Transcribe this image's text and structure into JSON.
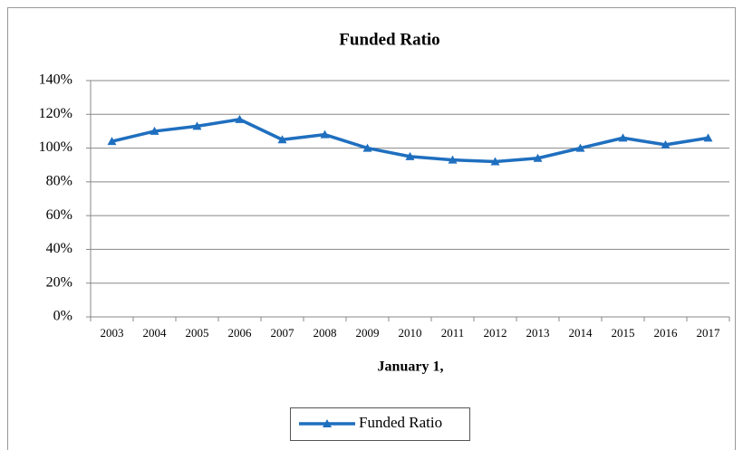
{
  "chart_data": {
    "type": "line",
    "title": "Funded  Ratio",
    "x_label": "January 1,",
    "categories": [
      "2003",
      "2004",
      "2005",
      "2006",
      "2007",
      "2008",
      "2009",
      "2010",
      "2011",
      "2012",
      "2013",
      "2014",
      "2015",
      "2016",
      "2017"
    ],
    "series": [
      {
        "name": "Funded Ratio",
        "color": "#1f6fbf",
        "values": [
          104,
          110,
          113,
          117,
          105,
          108,
          100,
          95,
          93,
          92,
          94,
          100,
          106,
          102,
          106
        ]
      }
    ],
    "ylim": [
      0,
      140
    ],
    "yticks": [
      {
        "value": 0,
        "label": "0%"
      },
      {
        "value": 20,
        "label": "20%"
      },
      {
        "value": 40,
        "label": "40%"
      },
      {
        "value": 60,
        "label": "60%"
      },
      {
        "value": 80,
        "label": "80%"
      },
      {
        "value": 100,
        "label": "100%"
      },
      {
        "value": 120,
        "label": "120%"
      },
      {
        "value": 140,
        "label": "140%"
      }
    ],
    "grid": true,
    "legend": "bottom"
  }
}
